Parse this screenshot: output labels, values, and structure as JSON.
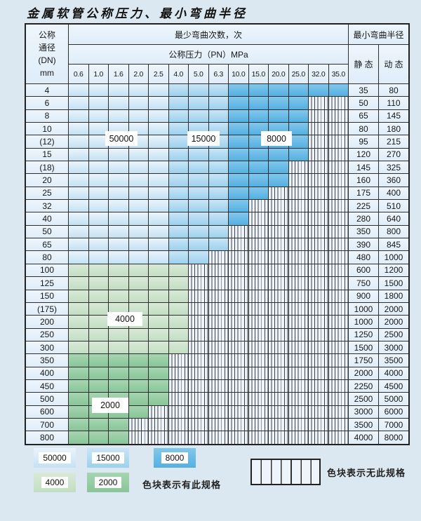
{
  "title": "金属软管公称压力、最小弯曲半径",
  "colors": {
    "page_bg": "#dbe7f1",
    "grid_line": "#2e2e2e",
    "cell_bg_top": "#eef5fc",
    "cell_bg_bot": "#dfedf9",
    "hatch_bg": "#eef4fb",
    "c50000_top": "#eaf4fc",
    "c50000_bot": "#c4e1f3",
    "c15000_top": "#c9e5f6",
    "c15000_bot": "#9cd1ee",
    "c8000_top": "#82c7ec",
    "c8000_bot": "#54b0e1",
    "c4000_top": "#d9e9d7",
    "c4000_bot": "#c2dec3",
    "c2000_top": "#a6d5b1",
    "c2000_bot": "#89c598"
  },
  "table": {
    "dn_header_lines": [
      "公称",
      "通径",
      "(DN)",
      "mm"
    ],
    "bend_times_header": "最少弯曲次数，次",
    "pn_header": "公称压力（PN）MPa",
    "pn_values": [
      "0.6",
      "1.0",
      "1.6",
      "2.0",
      "2.5",
      "4.0",
      "5.0",
      "6.3",
      "10.0",
      "15.0",
      "20.0",
      "25.0",
      "32.0",
      "35.0"
    ],
    "radius_header": "最小弯曲半径",
    "static_header": "静 态",
    "dynamic_header": "动 态",
    "cycle_bands_blue_rows": [
      {
        "cycles": "50000",
        "pn_from": "0.6",
        "pn_to": "2.5"
      },
      {
        "cycles": "15000",
        "pn_from": "4.0",
        "pn_to": "6.3"
      },
      {
        "cycles": "8000",
        "pn_from": "10.0",
        "pn_to": "35.0"
      }
    ],
    "rows": [
      {
        "dn": "4",
        "pn_max": "35.0",
        "cycles": "band",
        "static": "35",
        "dynamic": "80"
      },
      {
        "dn": "6",
        "pn_max": "25.0",
        "cycles": "band",
        "static": "50",
        "dynamic": "110"
      },
      {
        "dn": "8",
        "pn_max": "25.0",
        "cycles": "band",
        "static": "65",
        "dynamic": "145"
      },
      {
        "dn": "10",
        "pn_max": "25.0",
        "cycles": "band",
        "static": "80",
        "dynamic": "180"
      },
      {
        "dn": "(12)",
        "pn_max": "25.0",
        "cycles": "band",
        "static": "95",
        "dynamic": "215"
      },
      {
        "dn": "15",
        "pn_max": "25.0",
        "cycles": "band",
        "static": "120",
        "dynamic": "270"
      },
      {
        "dn": "(18)",
        "pn_max": "20.0",
        "cycles": "band",
        "static": "145",
        "dynamic": "325"
      },
      {
        "dn": "20",
        "pn_max": "20.0",
        "cycles": "band",
        "static": "160",
        "dynamic": "360"
      },
      {
        "dn": "25",
        "pn_max": "15.0",
        "cycles": "band",
        "static": "175",
        "dynamic": "400"
      },
      {
        "dn": "32",
        "pn_max": "10.0",
        "cycles": "band",
        "static": "225",
        "dynamic": "510"
      },
      {
        "dn": "40",
        "pn_max": "10.0",
        "cycles": "band",
        "static": "280",
        "dynamic": "640"
      },
      {
        "dn": "50",
        "pn_max": "6.3",
        "cycles": "band",
        "static": "350",
        "dynamic": "800"
      },
      {
        "dn": "65",
        "pn_max": "6.3",
        "cycles": "band",
        "static": "390",
        "dynamic": "845"
      },
      {
        "dn": "80",
        "pn_max": "5.0",
        "cycles": "band",
        "static": "480",
        "dynamic": "1000"
      },
      {
        "dn": "100",
        "pn_max": "4.0",
        "cycles": "4000",
        "static": "600",
        "dynamic": "1200"
      },
      {
        "dn": "125",
        "pn_max": "4.0",
        "cycles": "4000",
        "static": "750",
        "dynamic": "1500"
      },
      {
        "dn": "150",
        "pn_max": "4.0",
        "cycles": "4000",
        "static": "900",
        "dynamic": "1800"
      },
      {
        "dn": "(175)",
        "pn_max": "4.0",
        "cycles": "4000",
        "static": "1000",
        "dynamic": "2000"
      },
      {
        "dn": "200",
        "pn_max": "4.0",
        "cycles": "4000",
        "static": "1000",
        "dynamic": "2000"
      },
      {
        "dn": "250",
        "pn_max": "4.0",
        "cycles": "4000",
        "static": "1250",
        "dynamic": "2500"
      },
      {
        "dn": "300",
        "pn_max": "4.0",
        "cycles": "4000",
        "static": "1500",
        "dynamic": "3000"
      },
      {
        "dn": "350",
        "pn_max": "2.5",
        "cycles": "2000",
        "static": "1750",
        "dynamic": "3500"
      },
      {
        "dn": "400",
        "pn_max": "2.5",
        "cycles": "2000",
        "static": "2000",
        "dynamic": "4000"
      },
      {
        "dn": "450",
        "pn_max": "2.5",
        "cycles": "2000",
        "static": "2250",
        "dynamic": "4500"
      },
      {
        "dn": "500",
        "pn_max": "2.5",
        "cycles": "2000",
        "static": "2500",
        "dynamic": "5000"
      },
      {
        "dn": "600",
        "pn_max": "2.0",
        "cycles": "2000",
        "static": "3000",
        "dynamic": "6000"
      },
      {
        "dn": "700",
        "pn_max": "1.6",
        "cycles": "2000",
        "static": "3500",
        "dynamic": "7000"
      },
      {
        "dn": "800",
        "pn_max": "1.6",
        "cycles": "2000",
        "static": "4000",
        "dynamic": "8000"
      }
    ]
  },
  "overlay_labels": [
    {
      "text": "50000"
    },
    {
      "text": "15000"
    },
    {
      "text": "8000"
    },
    {
      "text": "4000"
    },
    {
      "text": "2000"
    }
  ],
  "legend": {
    "has_spec": [
      {
        "label": "50000"
      },
      {
        "label": "15000"
      },
      {
        "label": "8000"
      },
      {
        "label": "4000"
      },
      {
        "label": "2000"
      }
    ],
    "has_spec_note": "色块表示有此规格",
    "no_spec_note": "色块表示无此规格"
  }
}
